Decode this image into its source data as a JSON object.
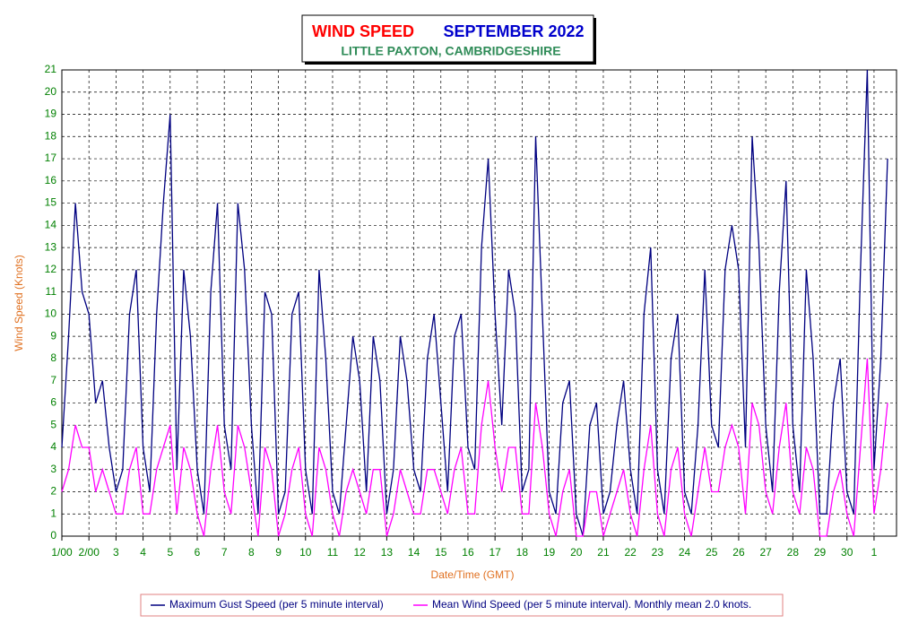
{
  "chart_data": {
    "type": "line",
    "title": "WIND SPEED",
    "title_date": "SEPTEMBER 2022",
    "subtitle": "LITTLE PAXTON, CAMBRIDGESHIRE",
    "xlabel": "Date/Time (GMT)",
    "ylabel": "Wind Speed (Knots)",
    "xlim": [
      1,
      31.83
    ],
    "ylim": [
      0,
      21
    ],
    "yticks": [
      0,
      1,
      2,
      3,
      4,
      5,
      6,
      7,
      8,
      9,
      10,
      11,
      12,
      13,
      14,
      15,
      16,
      17,
      18,
      19,
      20,
      21
    ],
    "xticks": [
      {
        "value": 1,
        "label": "1/00"
      },
      {
        "value": 2,
        "label": "2/00"
      },
      3,
      4,
      5,
      6,
      7,
      8,
      9,
      10,
      11,
      12,
      13,
      14,
      15,
      16,
      17,
      18,
      19,
      20,
      21,
      22,
      23,
      24,
      25,
      26,
      27,
      28,
      29,
      30,
      {
        "value": 31,
        "label": "1"
      }
    ],
    "grid": true,
    "x": [
      1,
      1.25,
      1.5,
      1.75,
      2,
      2.25,
      2.5,
      2.75,
      3,
      3.25,
      3.5,
      3.75,
      4,
      4.25,
      4.5,
      4.75,
      5,
      5.25,
      5.5,
      5.75,
      6,
      6.25,
      6.5,
      6.75,
      7,
      7.25,
      7.5,
      7.75,
      8,
      8.25,
      8.5,
      8.75,
      9,
      9.25,
      9.5,
      9.75,
      10,
      10.25,
      10.5,
      10.75,
      11,
      11.25,
      11.5,
      11.75,
      12,
      12.25,
      12.5,
      12.75,
      13,
      13.25,
      13.5,
      13.75,
      14,
      14.25,
      14.5,
      14.75,
      15,
      15.25,
      15.5,
      15.75,
      16,
      16.25,
      16.5,
      16.75,
      17,
      17.25,
      17.5,
      17.75,
      18,
      18.25,
      18.5,
      18.75,
      19,
      19.25,
      19.5,
      19.75,
      20,
      20.25,
      20.5,
      20.75,
      21,
      21.25,
      21.5,
      21.75,
      22,
      22.25,
      22.5,
      22.75,
      23,
      23.25,
      23.5,
      23.75,
      24,
      24.25,
      24.5,
      24.75,
      25,
      25.25,
      25.5,
      25.75,
      26,
      26.25,
      26.5,
      26.75,
      27,
      27.25,
      27.5,
      27.75,
      28,
      28.25,
      28.5,
      28.75,
      29,
      29.25,
      29.5,
      29.75,
      30,
      30.25,
      30.5,
      30.75,
      31,
      31.25,
      31.5
    ],
    "series": [
      {
        "name": "Maximum Gust Speed (per 5 minute interval)",
        "color": "#000080",
        "values": [
          4,
          9,
          15,
          11,
          10,
          6,
          7,
          4,
          2,
          3,
          10,
          12,
          4,
          2,
          10,
          15,
          19,
          3,
          12,
          9,
          3,
          1,
          11,
          15,
          5,
          3,
          15,
          12,
          5,
          1,
          11,
          10,
          1,
          2,
          10,
          11,
          3,
          1,
          12,
          8,
          2,
          1,
          5,
          9,
          7,
          2,
          9,
          7,
          1,
          3,
          9,
          7,
          3,
          2,
          8,
          10,
          6,
          2,
          9,
          10,
          4,
          3,
          13,
          17,
          10,
          5,
          12,
          10,
          2,
          3,
          18,
          10,
          2,
          1,
          6,
          7,
          1,
          0,
          5,
          6,
          1,
          2,
          5,
          7,
          3,
          1,
          10,
          13,
          3,
          1,
          8,
          10,
          2,
          1,
          5,
          12,
          5,
          4,
          12,
          14,
          12,
          4,
          18,
          13,
          5,
          2,
          11,
          16,
          5,
          2,
          12,
          8,
          1,
          1,
          6,
          8,
          2,
          1,
          12,
          21,
          3,
          8,
          17
        ]
      },
      {
        "name": "Mean Wind Speed (per 5 minute interval). Monthly mean 2.0 knots.",
        "color": "#ff00ff",
        "values": [
          2,
          3,
          5,
          4,
          4,
          2,
          3,
          2,
          1,
          1,
          3,
          4,
          1,
          1,
          3,
          4,
          5,
          1,
          4,
          3,
          1,
          0,
          3,
          5,
          2,
          1,
          5,
          4,
          2,
          0,
          4,
          3,
          0,
          1,
          3,
          4,
          1,
          0,
          4,
          3,
          1,
          0,
          2,
          3,
          2,
          1,
          3,
          3,
          0,
          1,
          3,
          2,
          1,
          1,
          3,
          3,
          2,
          1,
          3,
          4,
          1,
          1,
          5,
          7,
          4,
          2,
          4,
          4,
          1,
          1,
          6,
          4,
          1,
          0,
          2,
          3,
          0,
          0,
          2,
          2,
          0,
          1,
          2,
          3,
          1,
          0,
          3,
          5,
          1,
          0,
          3,
          4,
          1,
          0,
          2,
          4,
          2,
          2,
          4,
          5,
          4,
          1,
          6,
          5,
          2,
          1,
          4,
          6,
          2,
          1,
          4,
          3,
          0,
          0,
          2,
          3,
          1,
          0,
          4,
          8,
          1,
          3,
          6
        ]
      }
    ]
  }
}
